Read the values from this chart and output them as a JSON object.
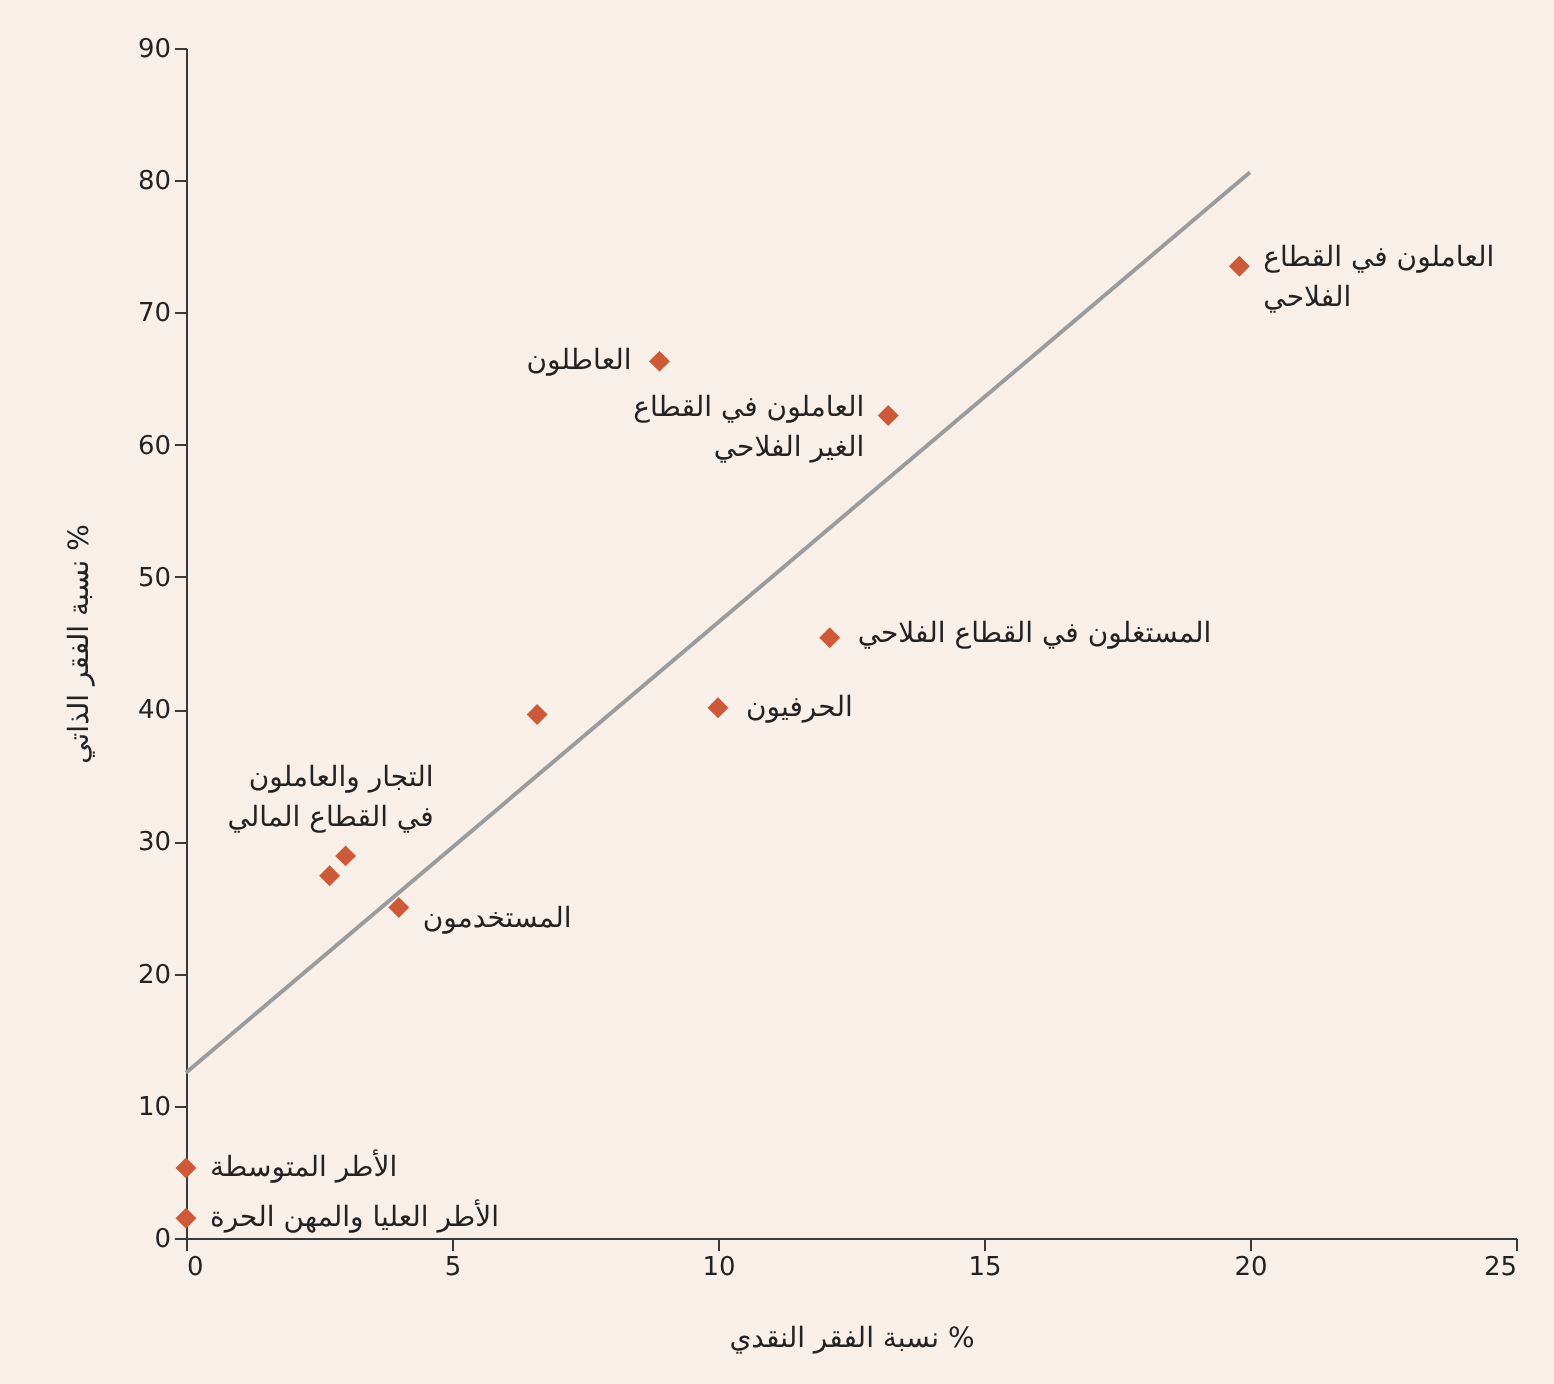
{
  "chart_data": {
    "type": "scatter",
    "xlabel": "نسبة الفقر النقدي %",
    "ylabel": "نسبة الفقر الذاتي %",
    "xlim": [
      0,
      25
    ],
    "xticks": [
      0,
      5,
      10,
      15,
      20,
      25
    ],
    "ylim": [
      0,
      90
    ],
    "yticks": [
      0,
      10,
      20,
      30,
      40,
      50,
      60,
      70,
      80,
      90
    ],
    "grid": false,
    "series": [
      {
        "marker": "diamond",
        "color": "#cc5a38",
        "x": [
          0,
          0,
          2.7,
          3.0,
          4.0,
          6.6,
          10.0,
          12.1,
          8.9,
          13.2,
          19.8
        ],
        "values": [
          5.3,
          1.5,
          27.4,
          28.9,
          25.0,
          39.6,
          40.1,
          45.4,
          66.3,
          62.2,
          73.5
        ]
      },
      {
        "type": "line",
        "marker": "none",
        "color": "#9b9b9b",
        "x": [
          0,
          20
        ],
        "values": [
          12.5,
          80.6
        ]
      }
    ],
    "annotations": [
      {
        "text": "الأطر المتوسطة",
        "x": 0,
        "y": 5.3
      },
      {
        "text": "الأطر العليا والمهن الحرة",
        "x": 0,
        "y": 1.5
      },
      {
        "text": "التجار والعاملون\nفي القطاع المالي",
        "x": 3.0,
        "y": 28.9
      },
      {
        "text": "المستخدمون",
        "x": 4.0,
        "y": 25.0
      },
      {
        "text": "الحرفيون",
        "x": 10.0,
        "y": 40.1
      },
      {
        "text": "المستغلون في القطاع الفلاحي",
        "x": 12.1,
        "y": 45.4
      },
      {
        "text": "العاطلون",
        "x": 8.9,
        "y": 66.3
      },
      {
        "text": "العاملون في القطاع\nالغير الفلاحي",
        "x": 13.2,
        "y": 62.2
      },
      {
        "text": "العاملون في القطاع\nالفلاحي",
        "x": 19.8,
        "y": 73.5
      }
    ]
  }
}
